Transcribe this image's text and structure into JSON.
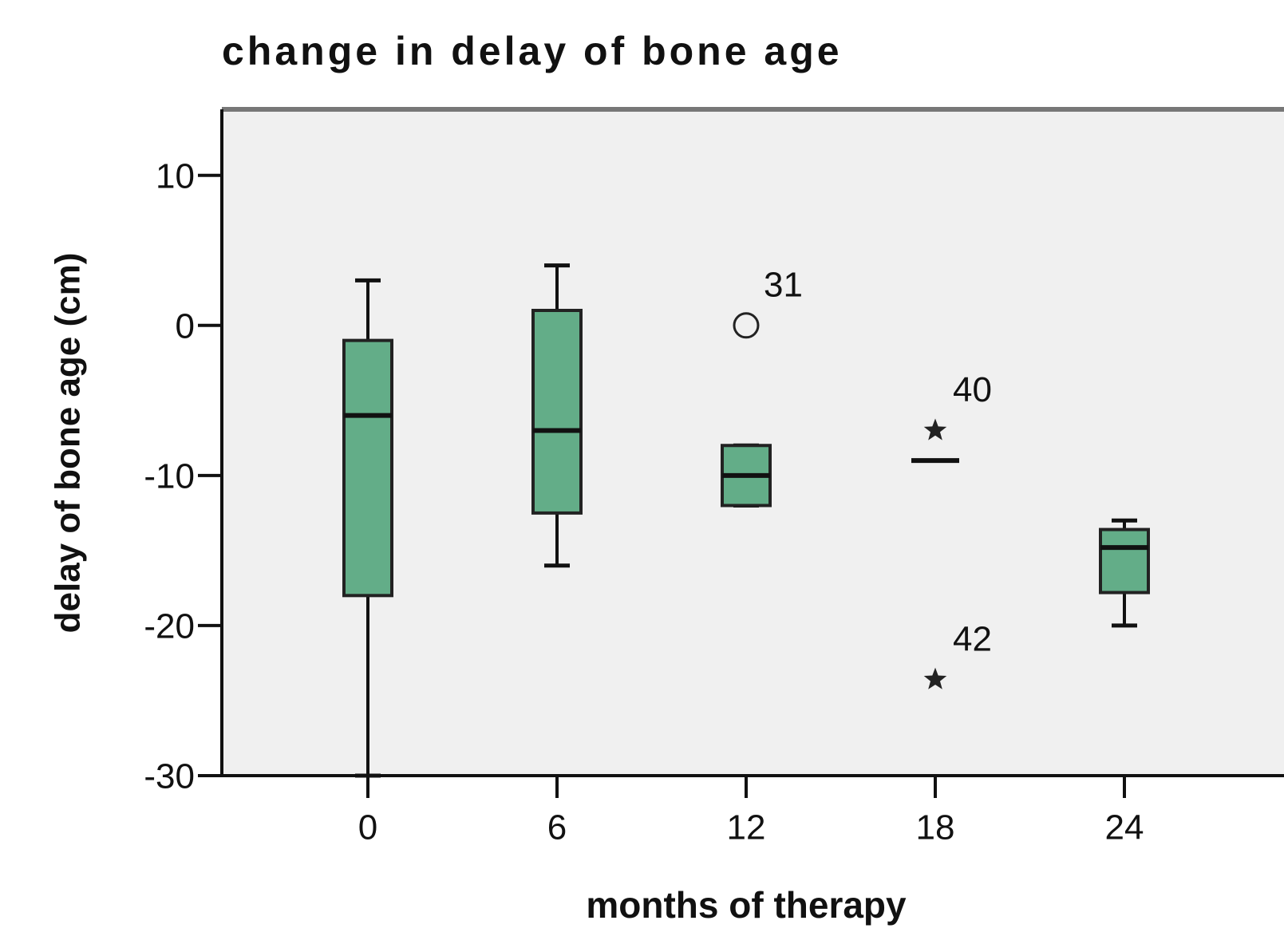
{
  "chart_data": {
    "type": "boxplot",
    "title": "change in delay of bone age",
    "x_label": "months of therapy",
    "y_label": "delay of bone age (cm)",
    "categories": [
      "0",
      "6",
      "12",
      "18",
      "24"
    ],
    "color": "#63ad88",
    "boxes": [
      {
        "min": -30,
        "q1": -18,
        "median": -6,
        "q3": -1,
        "max": 3,
        "outliers": []
      },
      {
        "min": -16,
        "q1": -12.5,
        "median": -7,
        "q3": 1,
        "max": 4,
        "outliers": []
      },
      {
        "min": -12,
        "q1": -12,
        "median": -10,
        "q3": -8,
        "max": -8,
        "outliers": [
          {
            "value": 0,
            "label": "31",
            "marker": "circle"
          }
        ]
      },
      {
        "min": -9,
        "q1": -9,
        "median": -9,
        "q3": -9,
        "max": -9,
        "outliers": [
          {
            "value": -7,
            "label": "40",
            "marker": "star"
          },
          {
            "value": -23.6,
            "label": "42",
            "marker": "star"
          }
        ]
      },
      {
        "min": -20,
        "q1": -17.8,
        "median": -14.8,
        "q3": -13.6,
        "max": -13,
        "outliers": []
      }
    ],
    "ylim": [
      -30,
      14.4
    ],
    "yticks": [
      10,
      0,
      -10,
      -20,
      -30
    ]
  }
}
